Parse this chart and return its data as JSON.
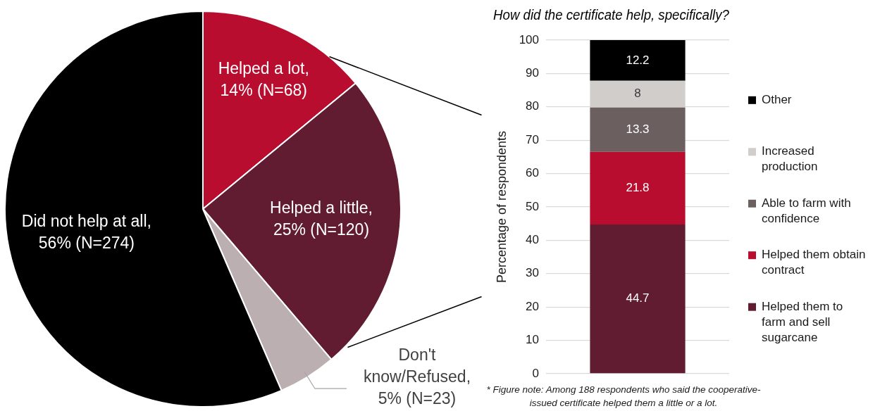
{
  "chart_data": [
    {
      "type": "pie",
      "categories": [
        "Helped a lot, 14% (N=68)",
        "Helped a little, 25% (N=120)",
        "Don't know/Refused, 5% (N=23)",
        "Did not help at all, 56% (N=274)"
      ],
      "values": [
        68,
        120,
        23,
        274
      ],
      "colors": [
        "#b80d2f",
        "#611c31",
        "#bbafb1",
        "#000000"
      ]
    },
    {
      "type": "bar",
      "title": "How did the certificate help, specifically?",
      "ylabel": "Percentage of respondents",
      "categories": [
        null
      ],
      "stacked": true,
      "series": [
        {
          "name": "Helped them to farm and sell sugarcane",
          "color": "#611c31",
          "values": [
            44.7
          ]
        },
        {
          "name": "Helped them obtain contract",
          "color": "#b80d2f",
          "values": [
            21.8
          ]
        },
        {
          "name": "Able to farm with confidence",
          "color": "#6b605f",
          "values": [
            13.3
          ]
        },
        {
          "name": "Increased production",
          "color": "#d0cdca",
          "values": [
            8
          ]
        },
        {
          "name": "Other",
          "color": "#000000",
          "values": [
            12.2
          ]
        }
      ],
      "ylim": [
        0,
        100
      ],
      "yticks": [
        0,
        10,
        20,
        30,
        40,
        50,
        60,
        70,
        80,
        90,
        100
      ],
      "grid": "y",
      "legend": "right",
      "data_labels": true,
      "annotations": [
        "* Figure note: Among 188 respondents who said the cooperative-issued certificate helped them a little or a lot."
      ]
    }
  ]
}
